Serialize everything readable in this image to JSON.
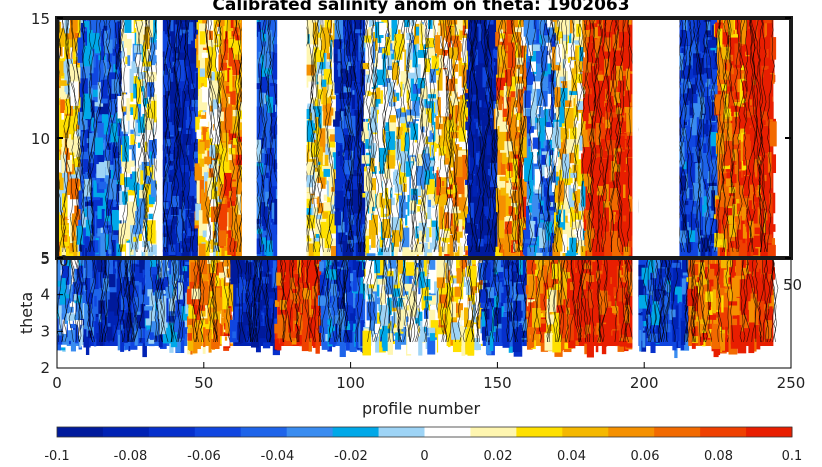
{
  "chart_data": [
    {
      "type": "heatmap",
      "title": "Calibrated salinity anom on theta: 1902063",
      "xlabel": "",
      "ylabel": "",
      "xlim": [
        0,
        250
      ],
      "ylim": [
        5,
        15
      ],
      "x_ticks": [],
      "y_ticks": [
        "5",
        "10",
        "15"
      ],
      "missing_columns": [
        {
          "x_range": [
            34,
            36
          ]
        },
        {
          "x_range": [
            63,
            68
          ]
        },
        {
          "x_range": [
            75,
            85
          ]
        },
        {
          "x_range": [
            196,
            198
          ]
        },
        {
          "x_range": [
            198,
            212
          ]
        }
      ],
      "profile_anomaly": [
        {
          "x_range": [
            0,
            8
          ],
          "value": 0.03
        },
        {
          "x_range": [
            8,
            22
          ],
          "value": -0.05
        },
        {
          "x_range": [
            22,
            34
          ],
          "value": 0.0
        },
        {
          "x_range": [
            36,
            48
          ],
          "value": -0.08
        },
        {
          "x_range": [
            48,
            56
          ],
          "value": 0.03
        },
        {
          "x_range": [
            56,
            63
          ],
          "value": 0.06
        },
        {
          "x_range": [
            68,
            75
          ],
          "value": -0.05
        },
        {
          "x_range": [
            85,
            95
          ],
          "value": 0.02
        },
        {
          "x_range": [
            95,
            105
          ],
          "value": -0.07
        },
        {
          "x_range": [
            105,
            120
          ],
          "value": 0.01
        },
        {
          "x_range": [
            120,
            130
          ],
          "value": 0.0
        },
        {
          "x_range": [
            130,
            140
          ],
          "value": 0.04
        },
        {
          "x_range": [
            140,
            150
          ],
          "value": -0.09
        },
        {
          "x_range": [
            150,
            160
          ],
          "value": 0.05
        },
        {
          "x_range": [
            160,
            170
          ],
          "value": -0.03
        },
        {
          "x_range": [
            170,
            180
          ],
          "value": 0.02
        },
        {
          "x_range": [
            180,
            196
          ],
          "value": 0.09
        },
        {
          "x_range": [
            212,
            225
          ],
          "value": -0.06
        },
        {
          "x_range": [
            225,
            235
          ],
          "value": 0.07
        },
        {
          "x_range": [
            235,
            244
          ],
          "value": 0.1
        }
      ]
    },
    {
      "type": "heatmap",
      "title": "",
      "xlabel": "profile number",
      "ylabel": "theta",
      "xlim": [
        0,
        250
      ],
      "ylim": [
        2,
        5
      ],
      "x_ticks": [
        "0",
        "50",
        "100",
        "150",
        "200",
        "250"
      ],
      "y_ticks": [
        "2",
        "3",
        "4",
        "5"
      ],
      "hidden_tick_fragments": [
        "0",
        "50"
      ],
      "missing_columns": [
        {
          "x_range": [
            196,
            198
          ]
        }
      ],
      "profile_anomaly": [
        {
          "x_range": [
            0,
            10
          ],
          "value": -0.03
        },
        {
          "x_range": [
            10,
            30
          ],
          "value": -0.07
        },
        {
          "x_range": [
            30,
            45
          ],
          "value": -0.04
        },
        {
          "x_range": [
            45,
            60
          ],
          "value": 0.05
        },
        {
          "x_range": [
            60,
            75
          ],
          "value": -0.08
        },
        {
          "x_range": [
            75,
            90
          ],
          "value": 0.09
        },
        {
          "x_range": [
            90,
            105
          ],
          "value": -0.05
        },
        {
          "x_range": [
            105,
            130
          ],
          "value": 0.0
        },
        {
          "x_range": [
            130,
            145
          ],
          "value": 0.03
        },
        {
          "x_range": [
            145,
            160
          ],
          "value": -0.06
        },
        {
          "x_range": [
            160,
            175
          ],
          "value": 0.06
        },
        {
          "x_range": [
            175,
            196
          ],
          "value": 0.1
        },
        {
          "x_range": [
            198,
            215
          ],
          "value": -0.06
        },
        {
          "x_range": [
            215,
            230
          ],
          "value": 0.07
        },
        {
          "x_range": [
            230,
            244
          ],
          "value": 0.09
        }
      ]
    }
  ],
  "colorbar": {
    "range": [
      -0.1,
      0.1
    ],
    "tick_labels": [
      "-0.1",
      "-0.08",
      "-0.06",
      "-0.04",
      "-0.02",
      "0",
      "0.02",
      "0.04",
      "0.06",
      "0.08",
      "0.1"
    ],
    "colors": [
      "#001a9c",
      "#0022b4",
      "#0630cc",
      "#1046e0",
      "#1e64ea",
      "#3a8cf0",
      "#00a8e8",
      "#9ed4f6",
      "#ffffff",
      "#fff6b0",
      "#ffe000",
      "#f5b800",
      "#f59000",
      "#f26a00",
      "#ef4000",
      "#e81e00"
    ]
  }
}
